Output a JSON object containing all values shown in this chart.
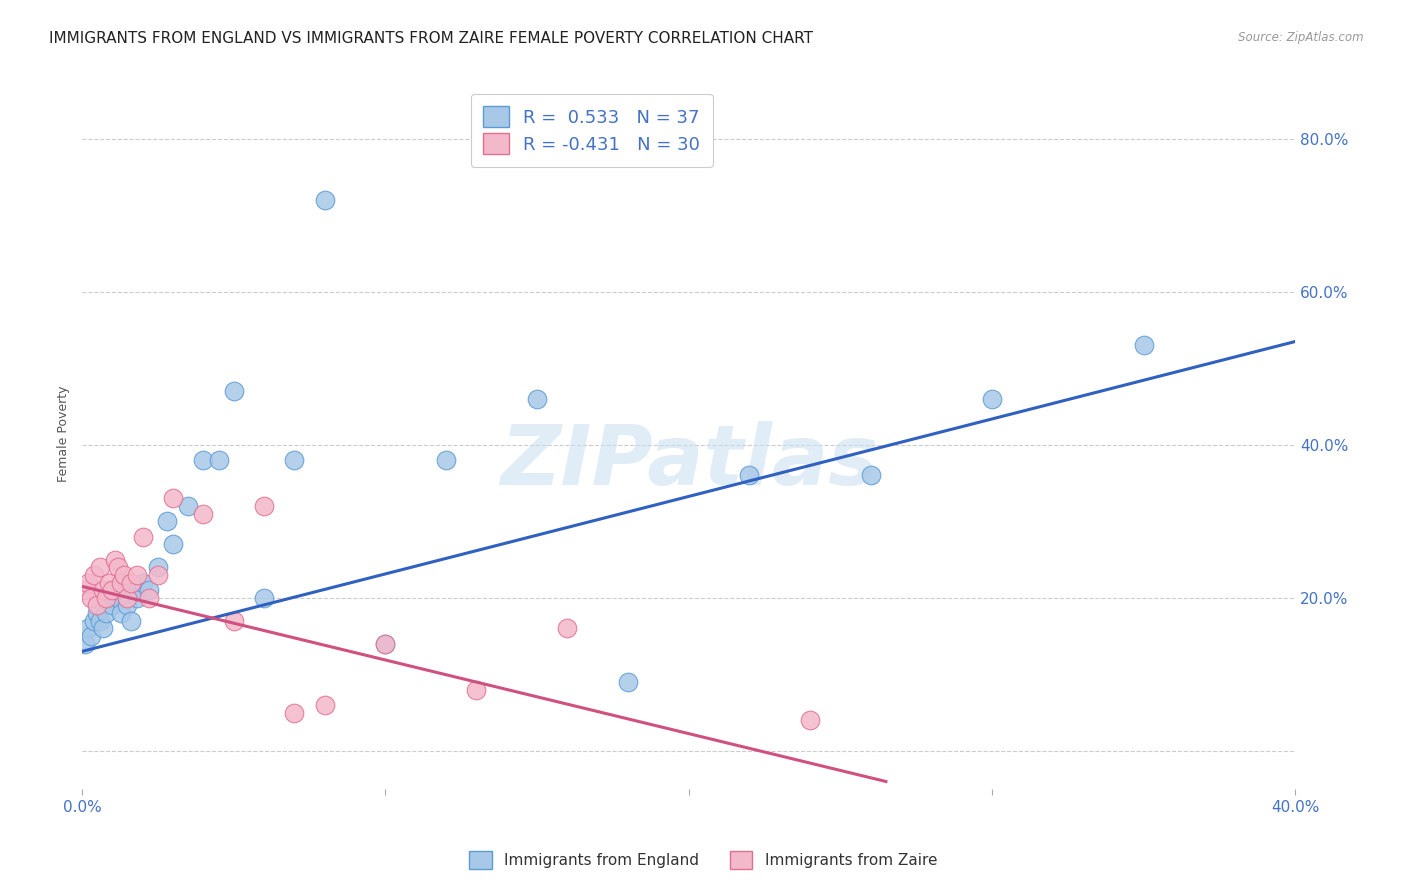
{
  "title": "IMMIGRANTS FROM ENGLAND VS IMMIGRANTS FROM ZAIRE FEMALE POVERTY CORRELATION CHART",
  "source": "Source: ZipAtlas.com",
  "ylabel": "Female Poverty",
  "xlim": [
    0.0,
    0.4
  ],
  "ylim": [
    -0.05,
    0.88
  ],
  "ytick_vals": [
    0.0,
    0.2,
    0.4,
    0.6,
    0.8
  ],
  "right_ytick_labels": [
    "20.0%",
    "40.0%",
    "60.0%",
    "80.0%"
  ],
  "right_ytick_vals": [
    0.2,
    0.4,
    0.6,
    0.8
  ],
  "england_color": "#a8c8e8",
  "england_edge_color": "#5b9bd5",
  "zaire_color": "#f4b8cb",
  "zaire_edge_color": "#e07090",
  "england_R": 0.533,
  "england_N": 37,
  "zaire_R": -0.431,
  "zaire_N": 30,
  "blue_line_color": "#3060c0",
  "pink_line_color": "#d05080",
  "watermark": "ZIPatlas",
  "background_color": "#ffffff",
  "england_x": [
    0.001,
    0.002,
    0.003,
    0.004,
    0.005,
    0.006,
    0.007,
    0.008,
    0.009,
    0.01,
    0.011,
    0.012,
    0.013,
    0.015,
    0.016,
    0.017,
    0.018,
    0.02,
    0.022,
    0.025,
    0.028,
    0.03,
    0.035,
    0.04,
    0.045,
    0.05,
    0.06,
    0.07,
    0.08,
    0.1,
    0.12,
    0.15,
    0.18,
    0.22,
    0.26,
    0.3,
    0.35
  ],
  "england_y": [
    0.14,
    0.16,
    0.15,
    0.17,
    0.18,
    0.17,
    0.16,
    0.18,
    0.2,
    0.19,
    0.21,
    0.2,
    0.18,
    0.19,
    0.17,
    0.21,
    0.2,
    0.22,
    0.21,
    0.24,
    0.3,
    0.27,
    0.32,
    0.38,
    0.38,
    0.47,
    0.2,
    0.38,
    0.72,
    0.14,
    0.38,
    0.46,
    0.09,
    0.36,
    0.36,
    0.46,
    0.53
  ],
  "zaire_x": [
    0.001,
    0.002,
    0.003,
    0.004,
    0.005,
    0.006,
    0.007,
    0.008,
    0.009,
    0.01,
    0.011,
    0.012,
    0.013,
    0.014,
    0.015,
    0.016,
    0.018,
    0.02,
    0.022,
    0.025,
    0.03,
    0.04,
    0.05,
    0.06,
    0.07,
    0.08,
    0.1,
    0.13,
    0.16,
    0.24
  ],
  "zaire_y": [
    0.21,
    0.22,
    0.2,
    0.23,
    0.19,
    0.24,
    0.21,
    0.2,
    0.22,
    0.21,
    0.25,
    0.24,
    0.22,
    0.23,
    0.2,
    0.22,
    0.23,
    0.28,
    0.2,
    0.23,
    0.33,
    0.31,
    0.17,
    0.32,
    0.05,
    0.06,
    0.14,
    0.08,
    0.16,
    0.04
  ],
  "dot_size": 180,
  "title_fontsize": 11,
  "axis_label_fontsize": 9,
  "legend_fontsize": 13,
  "tick_fontsize": 11,
  "blue_line_x0": 0.0,
  "blue_line_y0": 0.13,
  "blue_line_x1": 0.4,
  "blue_line_y1": 0.535,
  "pink_line_x0": 0.0,
  "pink_line_y0": 0.215,
  "pink_line_x1": 0.265,
  "pink_line_y1": -0.04
}
